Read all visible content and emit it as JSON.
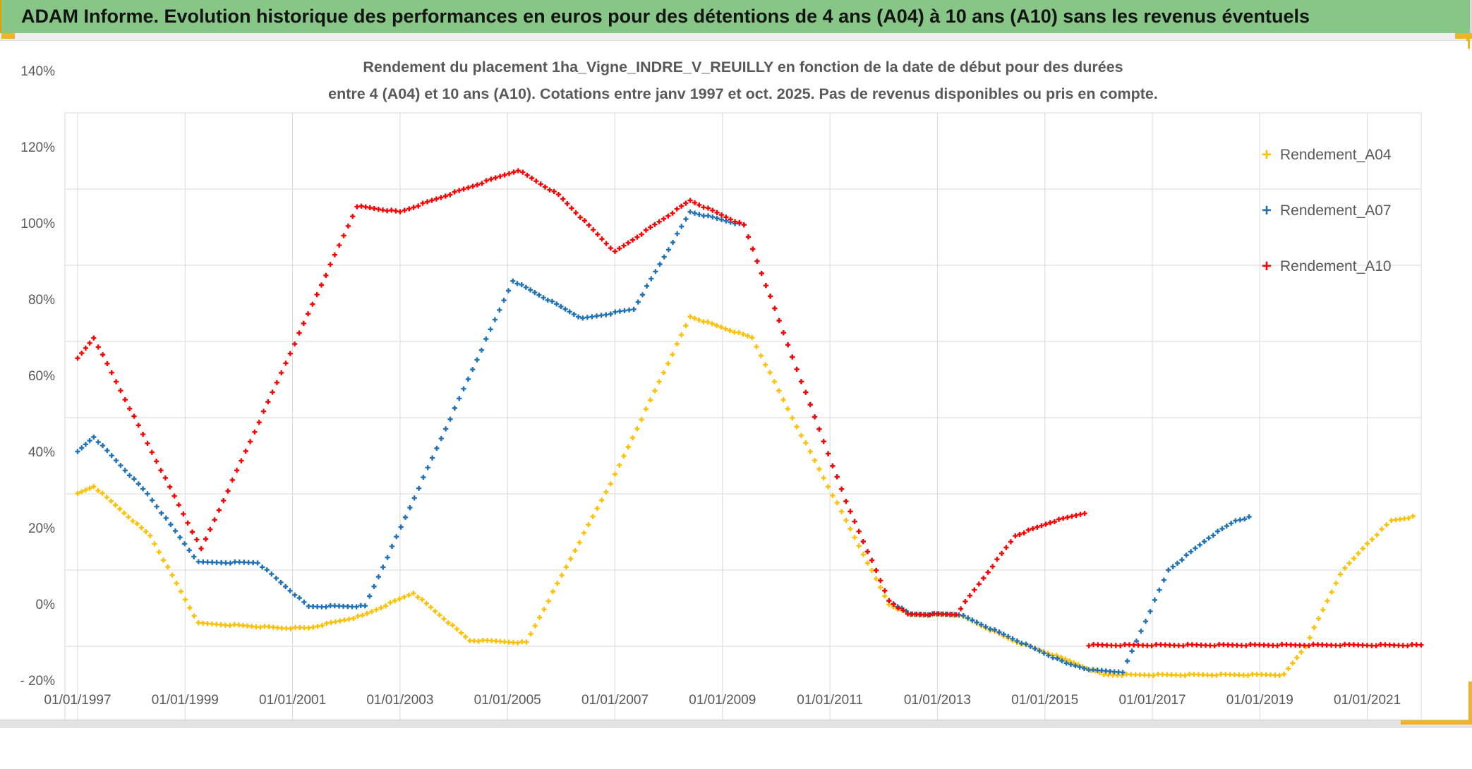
{
  "header": {
    "title": "ADAM Informe. Evolution historique des performances en euros pour des détentions de 4 ans (A04) à 10 ans (A10) sans les revenus éventuels",
    "background_color": "#87c687",
    "accent_color": "#f0b428"
  },
  "chart": {
    "title_line1": "Rendement du placement 1ha_Vigne_INDRE_V_REUILLY en fonction de la date de début pour des durées",
    "title_line2": "entre 4 (A04) et 10 ans (A10). Cotations entre janv 1997 et oct. 2025. Pas de revenus disponibles ou pris en compte.",
    "grid_color": "#d9d9d9",
    "axis_text_color": "#595959"
  },
  "chart_data": {
    "type": "scatter",
    "title": "Rendement du placement 1ha_Vigne_INDRE_V_REUILLY en fonction de la date de début pour des durées entre 4 (A04) et 10 ans (A10). Cotations entre janv 1997 et oct. 2025. Pas de revenus disponibles ou pris en compte.",
    "xlabel": "",
    "ylabel": "",
    "x_range_years": [
      1996.76,
      2022.0
    ],
    "ylim_percent": [
      -20,
      140
    ],
    "grid": true,
    "legend_position": "right",
    "marker": "plus",
    "sampling": "monthly",
    "x_tick_labels": [
      "01/01/1997",
      "01/01/1999",
      "01/01/2001",
      "01/01/2003",
      "01/01/2005",
      "01/01/2007",
      "01/01/2009",
      "01/01/2011",
      "01/01/2013",
      "01/01/2015",
      "01/01/2017",
      "01/01/2019",
      "01/01/2021"
    ],
    "x_tick_years": [
      1997,
      1999,
      2001,
      2003,
      2005,
      2007,
      2009,
      2011,
      2013,
      2015,
      2017,
      2019,
      2021
    ],
    "y_tick_labels": [
      "140%",
      "120%",
      "100%",
      "80%",
      "60%",
      "40%",
      "20%",
      "0%",
      "- 20%"
    ],
    "y_tick_values": [
      140,
      120,
      100,
      80,
      60,
      40,
      20,
      0,
      -20
    ],
    "series": [
      {
        "name": "Rendement_A04",
        "color": "#ffc000",
        "segments": [
          [
            [
              1997.0,
              40
            ],
            [
              1997.3,
              42
            ],
            [
              1998.35,
              29
            ],
            [
              1999.25,
              6
            ],
            [
              2000.0,
              5.5
            ],
            [
              2000.8,
              4.8
            ],
            [
              2001.3,
              4.8
            ],
            [
              2002.3,
              8
            ],
            [
              2003.25,
              14
            ],
            [
              2004.3,
              1.5
            ],
            [
              2005.35,
              1
            ],
            [
              2007.0,
              45
            ],
            [
              2008.4,
              86.5
            ],
            [
              2009.55,
              81
            ],
            [
              2010.3,
              60
            ],
            [
              2011.3,
              33
            ],
            [
              2012.1,
              11
            ],
            [
              2012.5,
              8.2
            ],
            [
              2013.4,
              8.2
            ],
            [
              2014.4,
              1.5
            ],
            [
              2015.3,
              -3
            ],
            [
              2016.1,
              -7.5
            ],
            [
              2019.45,
              -7.5
            ],
            [
              2019.85,
              0
            ],
            [
              2020.5,
              19
            ],
            [
              2021.0,
              27
            ],
            [
              2021.45,
              33
            ],
            [
              2021.85,
              34
            ]
          ]
        ]
      },
      {
        "name": "Rendement_A07",
        "color": "#1f72b5",
        "segments": [
          [
            [
              1997.0,
              51
            ],
            [
              1997.3,
              55
            ],
            [
              1998.3,
              40
            ],
            [
              1999.25,
              22
            ],
            [
              2000.35,
              22
            ],
            [
              2001.3,
              10.5
            ],
            [
              2002.35,
              10.5
            ],
            [
              2005.1,
              96
            ],
            [
              2006.4,
              86
            ],
            [
              2007.35,
              88.5
            ],
            [
              2008.4,
              114
            ],
            [
              2009.4,
              110.5
            ],
            [
              2010.3,
              76
            ],
            [
              2011.3,
              38
            ],
            [
              2012.1,
              12
            ],
            [
              2012.5,
              8.4
            ],
            [
              2013.4,
              8.4
            ],
            [
              2014.4,
              2
            ],
            [
              2015.4,
              -4.5
            ],
            [
              2015.9,
              -6.3
            ],
            [
              2016.45,
              -6.7
            ],
            [
              2017.3,
              20
            ],
            [
              2018.05,
              28.5
            ],
            [
              2018.55,
              33
            ],
            [
              2018.8,
              33.8
            ]
          ]
        ]
      },
      {
        "name": "Rendement_A10",
        "color": "#ff0000",
        "segments": [
          [
            [
              1997.0,
              75.5
            ],
            [
              1997.3,
              81
            ],
            [
              1999.3,
              25.5
            ],
            [
              2002.2,
              115.5
            ],
            [
              2003.0,
              114
            ],
            [
              2005.2,
              125
            ],
            [
              2005.95,
              118.5
            ],
            [
              2007.0,
              103.5
            ],
            [
              2008.4,
              117
            ],
            [
              2009.4,
              110.5
            ],
            [
              2010.3,
              76
            ],
            [
              2011.3,
              38
            ],
            [
              2012.1,
              12
            ],
            [
              2012.45,
              8.4
            ],
            [
              2013.35,
              8.4
            ],
            [
              2014.45,
              29
            ],
            [
              2015.1,
              32.5
            ],
            [
              2015.74,
              35
            ]
          ],
          [
            [
              2015.82,
              0.3
            ],
            [
              2022.0,
              0.3
            ]
          ]
        ]
      }
    ]
  }
}
